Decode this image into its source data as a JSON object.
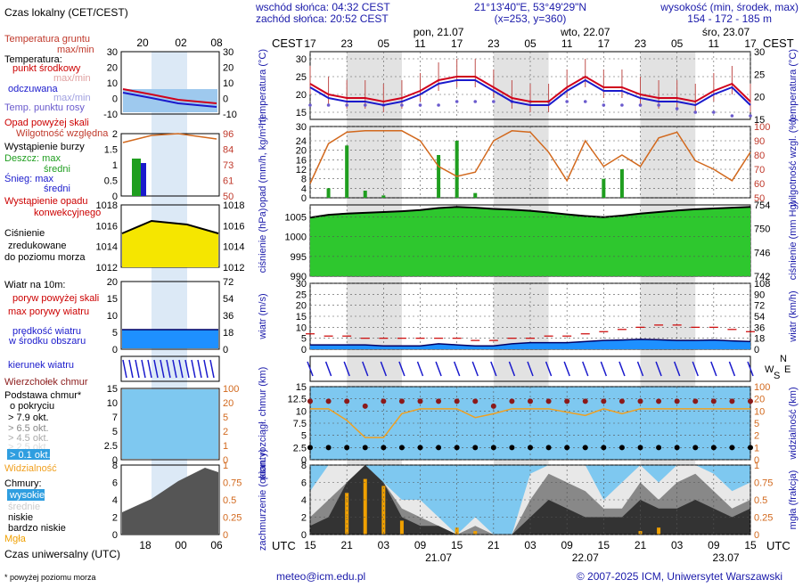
{
  "header": {
    "sunrise": "wschód słońca: 04:32 CEST",
    "sunset": "zachód słońca: 20:52 CEST",
    "coords": "21°13'40\"E, 53°49'29\"N",
    "grid": "(x=253,  y=360)",
    "altitude_label": "wysokość (min, środek, max)",
    "altitude_values": "154 - 172 - 185 m",
    "contact": "meteo@icm.edu.pl",
    "copyright": "© 2007-2025 ICM, Uniwersytet Warszawski",
    "footnote": "* powyżej poziomu morza"
  },
  "timeline": {
    "cest_label": "CEST",
    "utc_label": "UTC",
    "cest_hours": [
      "17",
      "23",
      "05",
      "11",
      "17",
      "23",
      "05",
      "11",
      "17",
      "23",
      "05",
      "11",
      "17"
    ],
    "utc_hours": [
      "15",
      "21",
      "03",
      "09",
      "15",
      "21",
      "03",
      "09",
      "15",
      "21",
      "03",
      "09",
      "15"
    ],
    "days_top": [
      "pon, 21.07",
      "wto, 22.07",
      "śro, 23.07"
    ],
    "days_bottom": [
      "21.07",
      "22.07",
      "23.07"
    ],
    "legend_top_hours": [
      "20",
      "02",
      "08"
    ],
    "legend_bottom_hours": [
      "18",
      "00",
      "06"
    ],
    "legend_top_title": "Czas lokalny (CET/CEST)",
    "legend_bottom_title": "Czas uniwersalny (UTC)"
  },
  "legend": {
    "temp": [
      "Temperatura gruntu",
      "max/min",
      "Temperatura:",
      "punkt środkowy",
      "max/min",
      "odczuwana",
      "max/min",
      "Temp. punktu rosy"
    ],
    "precip": [
      "Opad powyżej skali",
      "Wilgotność względna",
      "Wystąpienie burzy",
      "Deszcz: max",
      "średni",
      "Śnieg: max",
      "średni",
      "Wystąpienie opadu",
      "konwekcyjnego"
    ],
    "pressure": [
      "Ciśnienie",
      "zredukowane",
      "do poziomu morza"
    ],
    "wind": [
      "Wiatr na 10m:",
      "poryw powyżej skali",
      "max porywy wiatru",
      "prędkość wiatru",
      "w środku obszaru"
    ],
    "winddir": [
      "kierunek wiatru"
    ],
    "clouds": [
      "Wierzchołek chmur",
      "Podstawa chmur*",
      "o pokryciu",
      "> 7.9 okt.",
      "> 6.5 okt.",
      "> 4.5 okt.",
      "> 2.5 okt.",
      "> 0.1 okt.",
      "Widzialność"
    ],
    "cover": [
      "Chmury:",
      "wysokie",
      "średnie",
      "niskie",
      "bardzo niskie",
      "Mgła"
    ]
  },
  "axis_titles": {
    "temp_l": "temperatura (°C)",
    "temp_r": "temperatura (°C)",
    "precip_l": "opad (mm/h, kg/m²h)",
    "precip_r": "wilgotność wzgl. (%)",
    "pres_l": "ciśnienie (hPa)",
    "pres_r": "ciśnienie (mm Hg)",
    "wind_l": "wiatr (m/s)",
    "wind_r": "wiatr (km/h)",
    "cloud_l": "pion. rozciągł. chmur (km)",
    "cloud_r": "widzialność (km)",
    "cover_l": "zachmurzenie (oktanty)",
    "cover_r": "mgła (frakcja)",
    "compass": [
      "N",
      "W",
      "E",
      "S"
    ]
  },
  "chart_data": [
    {
      "type": "line",
      "title": "temperatura",
      "x_hours_from_start": [
        0,
        3,
        6,
        9,
        12,
        15,
        18,
        21,
        24,
        27,
        30,
        33,
        36,
        39,
        42,
        45,
        48,
        51,
        54,
        57,
        60,
        63,
        66,
        69,
        72
      ],
      "series": [
        {
          "name": "punkt środkowy",
          "color": "#d0021b",
          "values": [
            23,
            20,
            19,
            19,
            18,
            19,
            21,
            24,
            25,
            25,
            22,
            19,
            18,
            18,
            22,
            25,
            22,
            22,
            20,
            19,
            19,
            18,
            21,
            23,
            18
          ]
        },
        {
          "name": "odczuwana",
          "color": "#1a1acc",
          "values": [
            22,
            19,
            18,
            18,
            17,
            18,
            20,
            23,
            24,
            24,
            21,
            18,
            17,
            17,
            21,
            24,
            21,
            21,
            19,
            18,
            18,
            17,
            20,
            22,
            17
          ]
        },
        {
          "name": "Temp. punktu rosy",
          "color": "#6a5acd",
          "values": [
            17,
            17,
            17,
            17,
            17,
            17,
            17,
            17,
            18,
            18,
            18,
            18,
            18,
            18,
            18,
            18,
            17,
            17,
            17,
            17,
            16,
            15,
            15,
            14,
            14
          ]
        }
      ],
      "ylim": [
        13,
        32
      ],
      "yticks": [
        15,
        20,
        25,
        30
      ],
      "right_yticks": [
        15,
        20,
        25,
        30
      ]
    },
    {
      "type": "bar",
      "title": "opad / wilgotność",
      "precip_mm": [
        0,
        4,
        22,
        3,
        1,
        0,
        0,
        18,
        24,
        2,
        0,
        0,
        0,
        0,
        0,
        0,
        8,
        12,
        0,
        0,
        0,
        0,
        0,
        0,
        0
      ],
      "humidity_pct": [
        60,
        88,
        96,
        97,
        97,
        97,
        90,
        72,
        65,
        68,
        90,
        97,
        96,
        82,
        62,
        90,
        72,
        80,
        72,
        92,
        96,
        76,
        70,
        62,
        82
      ],
      "ylim": [
        0,
        30
      ],
      "yticks": [
        0,
        4,
        8,
        12,
        16,
        20,
        24,
        30
      ],
      "right_yticks": [
        50,
        60,
        70,
        80,
        90,
        100
      ]
    },
    {
      "type": "area",
      "title": "ciśnienie",
      "values": [
        1004.8,
        1005.5,
        1005.8,
        1006,
        1006.2,
        1006.4,
        1006.7,
        1007.2,
        1007.5,
        1007.3,
        1007,
        1006.8,
        1006.5,
        1006.1,
        1005.6,
        1005.2,
        1004.9,
        1005.3,
        1005.8,
        1006.2,
        1006.6,
        1006.9,
        1007.1,
        1007.3,
        1007.5
      ],
      "ylim": [
        990,
        1008
      ],
      "yticks": [
        990,
        995,
        1000,
        1005
      ],
      "right_yticks": [
        742,
        746,
        750,
        754
      ]
    },
    {
      "type": "line",
      "title": "wiatr",
      "speed_ms": [
        2,
        2,
        2,
        2,
        1.5,
        1.5,
        1.5,
        2.5,
        2,
        1.5,
        1.5,
        2.5,
        3,
        3,
        3,
        3.5,
        4,
        4.2,
        4.5,
        4.3,
        4,
        4,
        4.2,
        3.8,
        3.5
      ],
      "gust_ms": [
        7,
        6,
        6,
        5,
        5,
        5,
        5,
        5,
        5,
        4,
        4,
        5,
        5,
        6,
        6,
        7,
        8,
        9,
        10,
        11,
        11,
        10,
        10,
        9,
        8
      ],
      "ylim": [
        0,
        30
      ],
      "yticks": [
        0,
        5,
        10,
        15,
        20,
        25,
        30
      ],
      "right_yticks": [
        0,
        18,
        36,
        54,
        72,
        90,
        108
      ]
    },
    {
      "type": "scatter",
      "title": "chmury / widzialność",
      "visibility_km": [
        20,
        20,
        6,
        1,
        1,
        12,
        20,
        20,
        20,
        8,
        12,
        20,
        20,
        20,
        14,
        10,
        20,
        12,
        20,
        20,
        20,
        20,
        20,
        20,
        20
      ],
      "cloud_top_km": [
        12,
        12,
        12,
        11,
        12,
        12,
        12,
        12,
        12,
        12,
        11,
        12,
        12,
        12,
        12,
        12,
        12,
        12,
        12,
        12,
        12,
        12,
        12,
        12,
        12
      ],
      "ylim": [
        0,
        15
      ],
      "yticks": [
        0,
        2.5,
        5,
        7.5,
        10,
        12.5,
        15
      ],
      "right_yticks": [
        0,
        1,
        2,
        5,
        10,
        20,
        100
      ]
    },
    {
      "type": "area",
      "title": "zachmurzenie",
      "high_okt": [
        5,
        8,
        8,
        8,
        6,
        4,
        4,
        2,
        0,
        2,
        0,
        0,
        7,
        8,
        8,
        8,
        4,
        6,
        8,
        6,
        8,
        8,
        7,
        5,
        6
      ],
      "mid_okt": [
        2,
        4,
        6,
        8,
        6,
        3,
        2,
        1,
        0,
        1,
        0,
        0,
        4,
        7,
        6,
        5,
        3,
        3,
        6,
        4,
        6,
        7,
        5,
        3,
        4
      ],
      "low_okt": [
        1,
        2,
        6,
        8,
        6,
        2,
        1,
        1,
        0,
        0,
        0,
        0,
        2,
        4,
        3,
        2,
        2,
        2,
        4,
        3,
        3,
        4,
        3,
        2,
        3
      ],
      "fog_frac": [
        0,
        0,
        0.6,
        0.8,
        0.7,
        0.2,
        0,
        0,
        0.1,
        0.05,
        0,
        0,
        0,
        0,
        0,
        0,
        0,
        0,
        0.05,
        0.1,
        0,
        0,
        0,
        0,
        0
      ],
      "ylim": [
        0,
        8
      ],
      "yticks": [
        0,
        2,
        4,
        6,
        8
      ],
      "right_yticks": [
        0,
        0.25,
        0.5,
        0.75,
        1
      ]
    }
  ],
  "legend_scales": {
    "temp": [
      30,
      20,
      10,
      0,
      -10
    ],
    "precip": [
      2.0,
      1.5,
      1.0,
      0.5,
      0
    ],
    "humidity": [
      96,
      84,
      73,
      61,
      50
    ],
    "pressure": [
      1018,
      1016,
      1014,
      1012
    ],
    "wind": [
      20,
      15,
      10,
      5,
      0
    ],
    "wind_kmh": [
      72,
      54,
      36,
      18,
      0
    ],
    "cloud": [
      15.0,
      10.0,
      7.0,
      5.0,
      2.5,
      0.0
    ],
    "vis": [
      100,
      20,
      5,
      2,
      1,
      0
    ],
    "cover": [
      8,
      6,
      4,
      2,
      0
    ],
    "fog": [
      1,
      0.75,
      0.5,
      0.25,
      0
    ]
  }
}
